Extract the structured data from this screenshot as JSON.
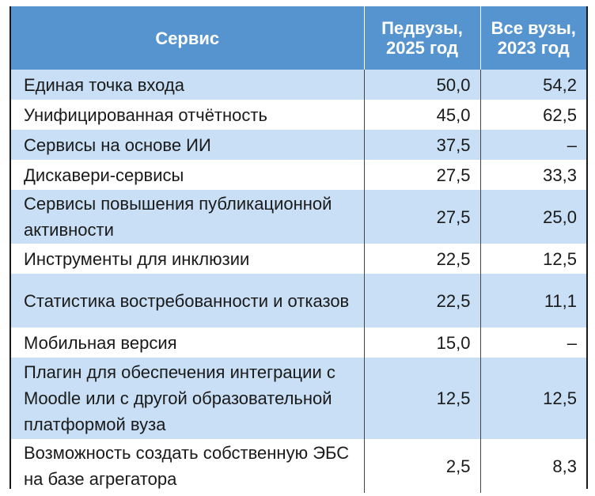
{
  "table": {
    "headers": {
      "service": "Сервис",
      "ped_2025": "Педвузы, 2025 год",
      "all_2023": "Все вузы, 2023 год"
    },
    "rows": [
      {
        "service": "Единая точка входа",
        "ped_2025": "50,0",
        "all_2023": "54,2"
      },
      {
        "service": "Унифицированная отчётность",
        "ped_2025": "45,0",
        "all_2023": "62,5"
      },
      {
        "service": "Сервисы на основе ИИ",
        "ped_2025": "37,5",
        "all_2023": "–"
      },
      {
        "service": "Дискавери-сервисы",
        "ped_2025": "27,5",
        "all_2023": "33,3"
      },
      {
        "service": "Сервисы повышения публикационной активности",
        "ped_2025": "27,5",
        "all_2023": "25,0"
      },
      {
        "service": "Инструменты для инклюзии",
        "ped_2025": "22,5",
        "all_2023": "12,5"
      },
      {
        "service": "Статистика востребованности и отказов",
        "ped_2025": "22,5",
        "all_2023": "11,1"
      },
      {
        "service": "Мобильная версия",
        "ped_2025": "15,0",
        "all_2023": "–"
      },
      {
        "service": "Плагин для обеспечения интеграции с Moodle или с другой образовательной платформой вуза",
        "ped_2025": "12,5",
        "all_2023": "12,5"
      },
      {
        "service": "Возможность создать собственную ЭБС на базе агрегатора",
        "ped_2025": "2,5",
        "all_2023": "8,3"
      }
    ]
  },
  "colors": {
    "header_bg": "#5594cf",
    "row_shaded": "#c8dff5",
    "row_plain": "#ffffff"
  }
}
